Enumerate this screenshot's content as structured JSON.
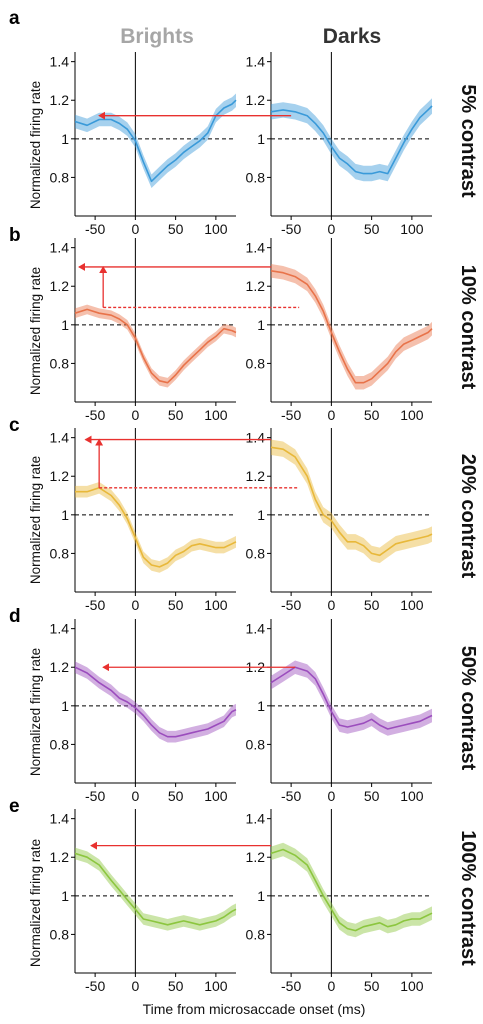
{
  "column_titles": [
    {
      "text": "Brights",
      "color": "#a6a6a6"
    },
    {
      "text": "Darks",
      "color": "#333333"
    }
  ],
  "xlabel": "Time from microsaccade onset (ms)",
  "ylabel": "Normalized firing rate",
  "arrow_color": "#e8312f",
  "chart_data": [
    {
      "type": "line",
      "panel": "a",
      "contrast_label": "5% contrast",
      "color": "#3a9ad9",
      "xlim": [
        -75,
        125
      ],
      "ylim": [
        0.6,
        1.45
      ],
      "xticks": [
        -50,
        0,
        50,
        100
      ],
      "yticks": [
        0.8,
        1,
        1.2,
        1.4
      ],
      "ytick_labels": [
        "0.8",
        "1",
        "1.2",
        "1.4"
      ],
      "reference_line": 1,
      "onset_line": 0,
      "series": [
        {
          "column": "Brights",
          "x": [
            -75,
            -60,
            -45,
            -30,
            -20,
            -10,
            0,
            10,
            20,
            30,
            40,
            50,
            60,
            70,
            80,
            90,
            100,
            110,
            120,
            125
          ],
          "y": [
            1.09,
            1.07,
            1.1,
            1.1,
            1.08,
            1.05,
            0.99,
            0.88,
            0.78,
            0.82,
            0.86,
            0.89,
            0.93,
            0.96,
            0.99,
            1.03,
            1.12,
            1.16,
            1.18,
            1.2
          ],
          "band": 0.035
        },
        {
          "column": "Darks",
          "x": [
            -75,
            -60,
            -45,
            -30,
            -20,
            -10,
            0,
            10,
            20,
            30,
            40,
            50,
            60,
            70,
            80,
            90,
            100,
            110,
            120,
            125
          ],
          "y": [
            1.14,
            1.15,
            1.14,
            1.12,
            1.08,
            1.03,
            0.96,
            0.9,
            0.87,
            0.83,
            0.82,
            0.82,
            0.83,
            0.82,
            0.9,
            0.98,
            1.05,
            1.11,
            1.15,
            1.17
          ],
          "band": 0.04
        }
      ]
    },
    {
      "type": "line",
      "panel": "b",
      "contrast_label": "10% contrast",
      "color": "#e8734a",
      "xlim": [
        -75,
        125
      ],
      "ylim": [
        0.6,
        1.45
      ],
      "xticks": [
        -50,
        0,
        50,
        100
      ],
      "yticks": [
        0.8,
        1,
        1.2,
        1.4
      ],
      "ytick_labels": [
        "0.8",
        "1",
        "1.2",
        "1.4"
      ],
      "reference_line": 1,
      "onset_line": 0,
      "series": [
        {
          "column": "Brights",
          "x": [
            -75,
            -60,
            -45,
            -30,
            -20,
            -10,
            0,
            10,
            20,
            30,
            40,
            50,
            60,
            70,
            80,
            90,
            100,
            110,
            120,
            125
          ],
          "y": [
            1.06,
            1.08,
            1.06,
            1.05,
            1.03,
            1.0,
            0.93,
            0.83,
            0.75,
            0.71,
            0.7,
            0.74,
            0.79,
            0.83,
            0.87,
            0.91,
            0.94,
            0.98,
            0.97,
            0.96
          ],
          "band": 0.025
        },
        {
          "column": "Darks",
          "x": [
            -75,
            -60,
            -45,
            -30,
            -20,
            -10,
            0,
            10,
            20,
            30,
            40,
            50,
            60,
            70,
            80,
            90,
            100,
            110,
            120,
            125
          ],
          "y": [
            1.28,
            1.27,
            1.25,
            1.21,
            1.15,
            1.07,
            0.96,
            0.86,
            0.77,
            0.7,
            0.7,
            0.72,
            0.76,
            0.8,
            0.86,
            0.9,
            0.92,
            0.94,
            0.96,
            0.98
          ],
          "band": 0.035
        }
      ]
    },
    {
      "type": "line",
      "panel": "c",
      "contrast_label": "20% contrast",
      "color": "#e8b83a",
      "xlim": [
        -75,
        125
      ],
      "ylim": [
        0.6,
        1.45
      ],
      "xticks": [
        -50,
        0,
        50,
        100
      ],
      "yticks": [
        0.8,
        1,
        1.2,
        1.4
      ],
      "ytick_labels": [
        "0.8",
        "1",
        "1.2",
        "1.4"
      ],
      "reference_line": 1,
      "onset_line": 0,
      "series": [
        {
          "column": "Brights",
          "x": [
            -75,
            -60,
            -45,
            -30,
            -20,
            -10,
            0,
            10,
            20,
            30,
            40,
            50,
            60,
            70,
            80,
            90,
            100,
            110,
            120,
            125
          ],
          "y": [
            1.12,
            1.12,
            1.14,
            1.1,
            1.05,
            0.98,
            0.88,
            0.78,
            0.74,
            0.73,
            0.75,
            0.79,
            0.81,
            0.84,
            0.85,
            0.84,
            0.83,
            0.83,
            0.85,
            0.86
          ],
          "band": 0.03
        },
        {
          "column": "Darks",
          "x": [
            -75,
            -60,
            -45,
            -30,
            -20,
            -10,
            0,
            10,
            20,
            30,
            40,
            50,
            60,
            70,
            80,
            90,
            100,
            110,
            120,
            125
          ],
          "y": [
            1.35,
            1.34,
            1.3,
            1.2,
            1.08,
            1.0,
            0.97,
            0.91,
            0.86,
            0.86,
            0.84,
            0.8,
            0.79,
            0.82,
            0.85,
            0.86,
            0.87,
            0.88,
            0.89,
            0.9
          ],
          "band": 0.04
        }
      ]
    },
    {
      "type": "line",
      "panel": "d",
      "contrast_label": "50% contrast",
      "color": "#9b4dbd",
      "xlim": [
        -75,
        125
      ],
      "ylim": [
        0.6,
        1.45
      ],
      "xticks": [
        -50,
        0,
        50,
        100
      ],
      "yticks": [
        0.8,
        1,
        1.2,
        1.4
      ],
      "ytick_labels": [
        "0.8",
        "1",
        "1.2",
        "1.4"
      ],
      "reference_line": 1,
      "onset_line": 0,
      "series": [
        {
          "column": "Brights",
          "x": [
            -75,
            -60,
            -45,
            -30,
            -20,
            -10,
            0,
            10,
            20,
            30,
            40,
            50,
            60,
            70,
            80,
            90,
            100,
            110,
            120,
            125
          ],
          "y": [
            1.2,
            1.17,
            1.12,
            1.08,
            1.04,
            1.02,
            0.99,
            0.95,
            0.9,
            0.86,
            0.84,
            0.84,
            0.85,
            0.86,
            0.87,
            0.88,
            0.9,
            0.92,
            0.97,
            0.98
          ],
          "band": 0.03
        },
        {
          "column": "Darks",
          "x": [
            -75,
            -60,
            -45,
            -30,
            -20,
            -10,
            0,
            10,
            20,
            30,
            40,
            50,
            60,
            70,
            80,
            90,
            100,
            110,
            120,
            125
          ],
          "y": [
            1.12,
            1.16,
            1.2,
            1.18,
            1.14,
            1.06,
            0.97,
            0.9,
            0.89,
            0.9,
            0.91,
            0.93,
            0.9,
            0.88,
            0.89,
            0.9,
            0.91,
            0.92,
            0.94,
            0.95
          ],
          "band": 0.035
        }
      ]
    },
    {
      "type": "line",
      "panel": "e",
      "contrast_label": "100% contrast",
      "color": "#8cc63f",
      "xlim": [
        -75,
        125
      ],
      "ylim": [
        0.6,
        1.45
      ],
      "xticks": [
        -50,
        0,
        50,
        100
      ],
      "yticks": [
        0.8,
        1,
        1.2,
        1.4
      ],
      "ytick_labels": [
        "0.8",
        "1",
        "1.2",
        "1.4"
      ],
      "reference_line": 1,
      "onset_line": 0,
      "series": [
        {
          "column": "Brights",
          "x": [
            -75,
            -60,
            -45,
            -30,
            -20,
            -10,
            0,
            10,
            20,
            30,
            40,
            50,
            60,
            70,
            80,
            90,
            100,
            110,
            120,
            125
          ],
          "y": [
            1.22,
            1.2,
            1.16,
            1.08,
            1.03,
            0.98,
            0.93,
            0.88,
            0.87,
            0.86,
            0.85,
            0.86,
            0.87,
            0.86,
            0.85,
            0.86,
            0.87,
            0.89,
            0.92,
            0.93
          ],
          "band": 0.03
        },
        {
          "column": "Darks",
          "x": [
            -75,
            -60,
            -45,
            -30,
            -20,
            -10,
            0,
            10,
            20,
            30,
            40,
            50,
            60,
            70,
            80,
            90,
            100,
            110,
            120,
            125
          ],
          "y": [
            1.22,
            1.24,
            1.21,
            1.16,
            1.08,
            1.0,
            0.93,
            0.86,
            0.83,
            0.82,
            0.84,
            0.85,
            0.86,
            0.84,
            0.85,
            0.87,
            0.88,
            0.88,
            0.9,
            0.91
          ],
          "band": 0.035
        }
      ]
    }
  ],
  "annotations": [
    {
      "panel": "a",
      "kind": "horizontal-arrow",
      "from": {
        "column": "Darks",
        "x": -50,
        "y": 1.12
      },
      "to": {
        "column": "Brights",
        "x": -45,
        "y": 1.12
      }
    },
    {
      "panel": "b",
      "kind": "horizontal-arrow",
      "from": {
        "column": "Darks",
        "x": -75,
        "y": 1.3
      },
      "to": {
        "column": "Brights",
        "x": -70,
        "y": 1.3
      }
    },
    {
      "panel": "b",
      "kind": "dashed-line",
      "from": {
        "column": "Brights",
        "x": -40,
        "y": 1.09
      },
      "to": {
        "column": "Darks",
        "x": -40,
        "y": 1.09
      }
    },
    {
      "panel": "b",
      "kind": "vertical-arrow",
      "from": {
        "column": "Brights",
        "x": -40,
        "y": 1.09
      },
      "to": {
        "column": "Brights",
        "x": -40,
        "y": 1.3
      }
    },
    {
      "panel": "c",
      "kind": "horizontal-arrow",
      "from": {
        "column": "Darks",
        "x": -75,
        "y": 1.39
      },
      "to": {
        "column": "Brights",
        "x": -62,
        "y": 1.39
      }
    },
    {
      "panel": "c",
      "kind": "dashed-line",
      "from": {
        "column": "Brights",
        "x": -45,
        "y": 1.14
      },
      "to": {
        "column": "Darks",
        "x": -40,
        "y": 1.14
      }
    },
    {
      "panel": "c",
      "kind": "vertical-arrow",
      "from": {
        "column": "Brights",
        "x": -45,
        "y": 1.14
      },
      "to": {
        "column": "Brights",
        "x": -45,
        "y": 1.39
      }
    },
    {
      "panel": "d",
      "kind": "horizontal-arrow",
      "from": {
        "column": "Darks",
        "x": -45,
        "y": 1.2
      },
      "to": {
        "column": "Brights",
        "x": -40,
        "y": 1.2
      }
    },
    {
      "panel": "e",
      "kind": "horizontal-arrow",
      "from": {
        "column": "Darks",
        "x": -75,
        "y": 1.26
      },
      "to": {
        "column": "Brights",
        "x": -55,
        "y": 1.26
      }
    }
  ]
}
